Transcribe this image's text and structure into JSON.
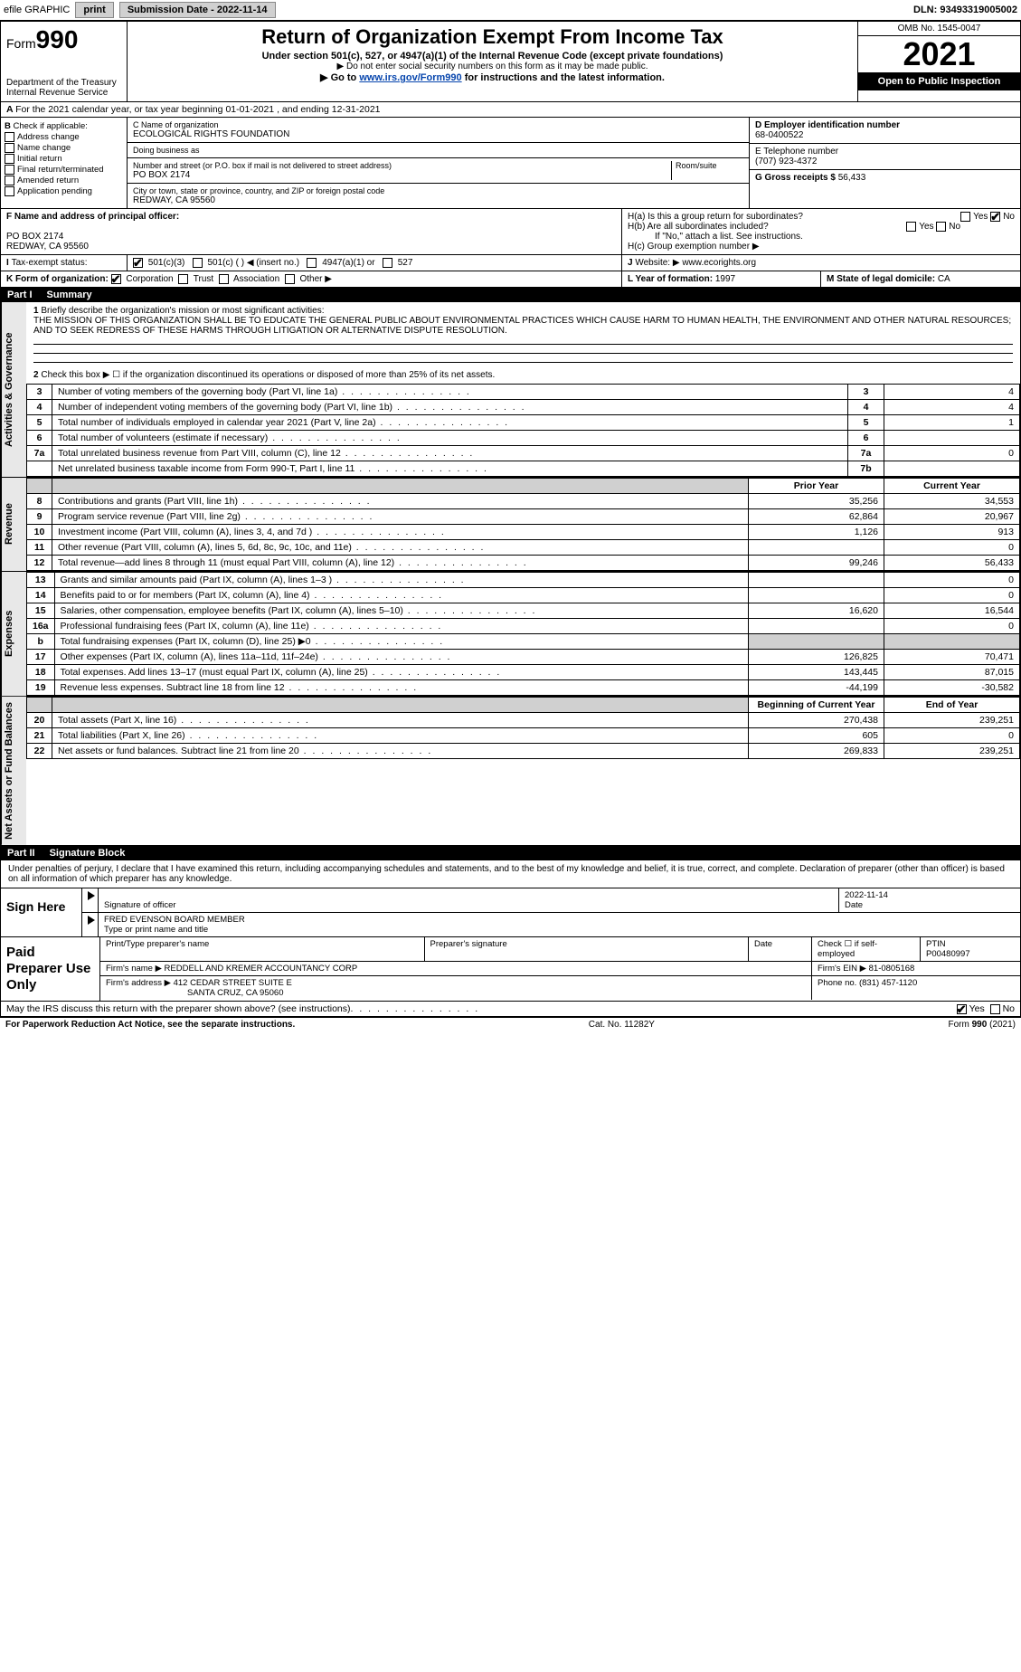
{
  "topbar": {
    "efile": "efile GRAPHIC",
    "print": "print",
    "submission_label": "Submission Date - 2022-11-14",
    "dln": "DLN: 93493319005002"
  },
  "header": {
    "form_prefix": "Form",
    "form_number": "990",
    "dept": "Department of the Treasury",
    "irs": "Internal Revenue Service",
    "title": "Return of Organization Exempt From Income Tax",
    "subtitle": "Under section 501(c), 527, or 4947(a)(1) of the Internal Revenue Code (except private foundations)",
    "note1": "▶ Do not enter social security numbers on this form as it may be made public.",
    "note2_pre": "▶ Go to ",
    "note2_link": "www.irs.gov/Form990",
    "note2_post": " for instructions and the latest information.",
    "omb": "OMB No. 1545-0047",
    "year": "2021",
    "open": "Open to Public Inspection"
  },
  "A": "For the 2021 calendar year, or tax year beginning 01-01-2021     , and ending 12-31-2021",
  "B": {
    "label": "Check if applicable:",
    "opts": [
      "Address change",
      "Name change",
      "Initial return",
      "Final return/terminated",
      "Amended return",
      "Application pending"
    ]
  },
  "C": {
    "name_label": "C Name of organization",
    "name": "ECOLOGICAL RIGHTS FOUNDATION",
    "dba_label": "Doing business as",
    "dba": "",
    "street_label": "Number and street (or P.O. box if mail is not delivered to street address)",
    "room_label": "Room/suite",
    "street": "PO BOX 2174",
    "city_label": "City or town, state or province, country, and ZIP or foreign postal code",
    "city": "REDWAY, CA  95560"
  },
  "D": {
    "label": "D Employer identification number",
    "value": "68-0400522"
  },
  "E": {
    "label": "E Telephone number",
    "value": "(707) 923-4372"
  },
  "G": {
    "label": "G Gross receipts $",
    "value": "56,433"
  },
  "F": {
    "label": "F  Name and address of principal officer:",
    "addr1": "PO BOX 2174",
    "addr2": "REDWAY, CA  95560"
  },
  "H": {
    "a": "H(a)  Is this a group return for subordinates?",
    "b": "H(b)  Are all subordinates included?",
    "b_note": "If \"No,\" attach a list. See instructions.",
    "c": "H(c)  Group exemption number ▶",
    "yes": "Yes",
    "no": "No"
  },
  "I": {
    "label": "Tax-exempt status:",
    "opts": [
      "501(c)(3)",
      "501(c) (  ) ◀ (insert no.)",
      "4947(a)(1) or",
      "527"
    ]
  },
  "J": {
    "label": "Website: ▶",
    "value": "www.ecorights.org"
  },
  "K": {
    "label": "K Form of organization:",
    "opts": [
      "Corporation",
      "Trust",
      "Association",
      "Other ▶"
    ]
  },
  "L": {
    "label": "L Year of formation:",
    "value": "1997"
  },
  "M": {
    "label": "M State of legal domicile:",
    "value": "CA"
  },
  "part1": {
    "num": "Part I",
    "title": "Summary"
  },
  "summary": {
    "q1": "Briefly describe the organization's mission or most significant activities:",
    "mission": "THE MISSION OF THIS ORGANIZATION SHALL BE TO EDUCATE THE GENERAL PUBLIC ABOUT ENVIRONMENTAL PRACTICES WHICH CAUSE HARM TO HUMAN HEALTH, THE ENVIRONMENT AND OTHER NATURAL RESOURCES; AND TO SEEK REDRESS OF THESE HARMS THROUGH LITIGATION OR ALTERNATIVE DISPUTE RESOLUTION.",
    "q2": "Check this box ▶ ☐  if the organization discontinued its operations or disposed of more than 25% of its net assets.",
    "rows_small": [
      {
        "n": "3",
        "label": "Number of voting members of the governing body (Part VI, line 1a)",
        "box": "3",
        "val": "4"
      },
      {
        "n": "4",
        "label": "Number of independent voting members of the governing body (Part VI, line 1b)",
        "box": "4",
        "val": "4"
      },
      {
        "n": "5",
        "label": "Total number of individuals employed in calendar year 2021 (Part V, line 2a)",
        "box": "5",
        "val": "1"
      },
      {
        "n": "6",
        "label": "Total number of volunteers (estimate if necessary)",
        "box": "6",
        "val": ""
      },
      {
        "n": "7a",
        "label": "Total unrelated business revenue from Part VIII, column (C), line 12",
        "box": "7a",
        "val": "0"
      },
      {
        "n": "",
        "label": "Net unrelated business taxable income from Form 990-T, Part I, line 11",
        "box": "7b",
        "val": ""
      }
    ],
    "col_prior": "Prior Year",
    "col_current": "Current Year",
    "revenue": [
      {
        "n": "8",
        "label": "Contributions and grants (Part VIII, line 1h)",
        "p": "35,256",
        "c": "34,553"
      },
      {
        "n": "9",
        "label": "Program service revenue (Part VIII, line 2g)",
        "p": "62,864",
        "c": "20,967"
      },
      {
        "n": "10",
        "label": "Investment income (Part VIII, column (A), lines 3, 4, and 7d )",
        "p": "1,126",
        "c": "913"
      },
      {
        "n": "11",
        "label": "Other revenue (Part VIII, column (A), lines 5, 6d, 8c, 9c, 10c, and 11e)",
        "p": "",
        "c": "0"
      },
      {
        "n": "12",
        "label": "Total revenue—add lines 8 through 11 (must equal Part VIII, column (A), line 12)",
        "p": "99,246",
        "c": "56,433"
      }
    ],
    "expenses": [
      {
        "n": "13",
        "label": "Grants and similar amounts paid (Part IX, column (A), lines 1–3 )",
        "p": "",
        "c": "0"
      },
      {
        "n": "14",
        "label": "Benefits paid to or for members (Part IX, column (A), line 4)",
        "p": "",
        "c": "0"
      },
      {
        "n": "15",
        "label": "Salaries, other compensation, employee benefits (Part IX, column (A), lines 5–10)",
        "p": "16,620",
        "c": "16,544"
      },
      {
        "n": "16a",
        "label": "Professional fundraising fees (Part IX, column (A), line 11e)",
        "p": "",
        "c": "0"
      },
      {
        "n": "b",
        "label": "Total fundraising expenses (Part IX, column (D), line 25) ▶0",
        "p": "shade",
        "c": "shade"
      },
      {
        "n": "17",
        "label": "Other expenses (Part IX, column (A), lines 11a–11d, 11f–24e)",
        "p": "126,825",
        "c": "70,471"
      },
      {
        "n": "18",
        "label": "Total expenses. Add lines 13–17 (must equal Part IX, column (A), line 25)",
        "p": "143,445",
        "c": "87,015"
      },
      {
        "n": "19",
        "label": "Revenue less expenses. Subtract line 18 from line 12",
        "p": "-44,199",
        "c": "-30,582"
      }
    ],
    "col_begin": "Beginning of Current Year",
    "col_end": "End of Year",
    "netassets": [
      {
        "n": "20",
        "label": "Total assets (Part X, line 16)",
        "p": "270,438",
        "c": "239,251"
      },
      {
        "n": "21",
        "label": "Total liabilities (Part X, line 26)",
        "p": "605",
        "c": "0"
      },
      {
        "n": "22",
        "label": "Net assets or fund balances. Subtract line 21 from line 20",
        "p": "269,833",
        "c": "239,251"
      }
    ]
  },
  "part2": {
    "num": "Part II",
    "title": "Signature Block"
  },
  "sig": {
    "intro": "Under penalties of perjury, I declare that I have examined this return, including accompanying schedules and statements, and to the best of my knowledge and belief, it is true, correct, and complete. Declaration of preparer (other than officer) is based on all information of which preparer has any knowledge.",
    "sign_here": "Sign Here",
    "sig_officer": "Signature of officer",
    "date_label": "Date",
    "date": "2022-11-14",
    "name": "FRED EVENSON  BOARD MEMBER",
    "name_label": "Type or print name and title"
  },
  "prep": {
    "title": "Paid Preparer Use Only",
    "h_name": "Print/Type preparer's name",
    "h_sig": "Preparer's signature",
    "h_date": "Date",
    "h_check": "Check ☐ if self-employed",
    "h_ptin": "PTIN",
    "ptin": "P00480997",
    "firm_label": "Firm's name    ▶",
    "firm": "REDDELL AND KREMER ACCOUNTANCY CORP",
    "ein_label": "Firm's EIN ▶",
    "ein": "81-0805168",
    "addr_label": "Firm's address ▶",
    "addr1": "412 CEDAR STREET SUITE E",
    "addr2": "SANTA CRUZ, CA  95060",
    "phone_label": "Phone no.",
    "phone": "(831) 457-1120"
  },
  "discuss": {
    "q": "May the IRS discuss this return with the preparer shown above? (see instructions)",
    "yes": "Yes",
    "no": "No"
  },
  "footer": {
    "left": "For Paperwork Reduction Act Notice, see the separate instructions.",
    "mid": "Cat. No. 11282Y",
    "right": "Form 990 (2021)"
  },
  "vtabs": {
    "gov": "Activities & Governance",
    "rev": "Revenue",
    "exp": "Expenses",
    "net": "Net Assets or Fund Balances"
  }
}
